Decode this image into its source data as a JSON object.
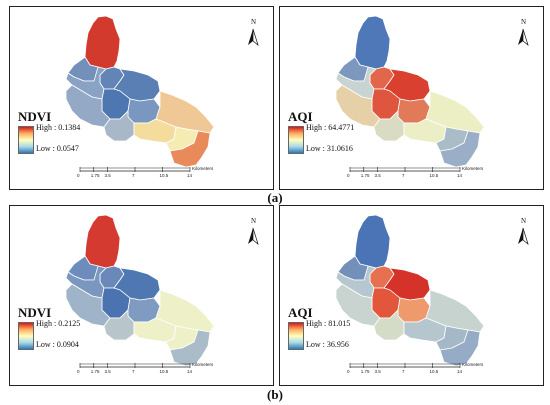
{
  "panels": [
    {
      "title": "NDVI",
      "high": "High : 0.1384",
      "low": "Low : 0.0547",
      "ramp": "ndvi",
      "fills": {
        "north": "#d23a2e",
        "w1": "#7390ba",
        "w2": "#6384b6",
        "w3": "#8aa2c4",
        "c1": "#5a7fb5",
        "c2": "#4e76b1",
        "c3": "#7997bf",
        "m1": "#93a9c5",
        "m2": "#a8b8c8",
        "e1": "#f0c896",
        "e2": "#f4dc9c",
        "s1": "#f5ecb4",
        "s2": "#e98a5a"
      }
    },
    {
      "title": "AQI",
      "high": "High : 64.4771",
      "low": "Low : 31.0616",
      "ramp": "aqi",
      "fills": {
        "north": "#4e78b8",
        "w1": "#7d98bf",
        "w2": "#e2664a",
        "w3": "#c8d3d2",
        "c1": "#d9402f",
        "c2": "#e0553d",
        "c3": "#e07a58",
        "m1": "#e6d0a8",
        "m2": "#d9dcc2",
        "e1": "#eceec4",
        "e2": "#ecefc6",
        "s1": "#a9bcc8",
        "s2": "#9aafc7"
      }
    },
    {
      "title": "NDVI",
      "high": "High : 0.2125",
      "low": "Low : 0.0904",
      "ramp": "ndvi",
      "fills": {
        "north": "#d53a30",
        "w1": "#6d8cbb",
        "w2": "#6a89b9",
        "w3": "#7b97bf",
        "c1": "#4f77b2",
        "c2": "#4a73b0",
        "c3": "#7f9bc1",
        "m1": "#9fb4c8",
        "m2": "#b8c6cb",
        "e1": "#eef0c8",
        "e2": "#eef0c8",
        "s1": "#eef0c8",
        "s2": "#a9bcc8"
      }
    },
    {
      "title": "AQI",
      "high": "High : 81.015",
      "low": "Low : 36.956",
      "ramp": "aqi",
      "fills": {
        "north": "#4a74b6",
        "w1": "#7390bb",
        "w2": "#e6704f",
        "w3": "#b7c7cf",
        "c1": "#d5322a",
        "c2": "#e2563c",
        "c3": "#ee9a6c",
        "m1": "#c9d4d0",
        "m2": "#d4dbc6",
        "e1": "#c6d3cf",
        "e2": "#b6c6ce",
        "s1": "#a4b8c8",
        "s2": "#95abc6"
      }
    }
  ],
  "captions": [
    "(a)",
    "(b)"
  ],
  "north_label": "N",
  "scale": {
    "ticks": [
      "0",
      "1.75",
      "3.5",
      "7",
      "10.5",
      "14"
    ],
    "unit": "Kilometers"
  },
  "colors": {
    "ndvi_ramp": [
      "#d7191c",
      "#fdae61",
      "#ffffbf",
      "#abd9e9",
      "#2c7bb6"
    ],
    "aqi_ramp": [
      "#d7191c",
      "#fdae61",
      "#ffffbf",
      "#abd9e9",
      "#2c7bb6"
    ]
  }
}
